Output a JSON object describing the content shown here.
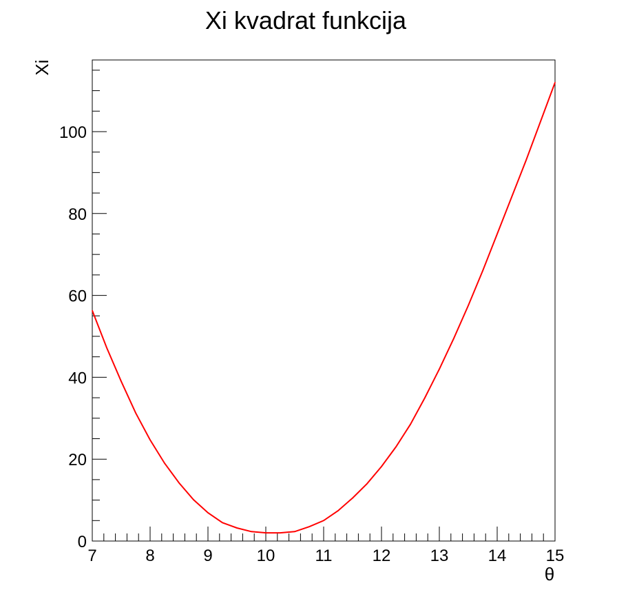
{
  "chart_data": {
    "type": "line",
    "title": "Xi kvadrat funkcija",
    "xlabel": "θ",
    "ylabel": "Xi",
    "xlim": [
      7,
      15
    ],
    "ylim": [
      0,
      117.5
    ],
    "grid": false,
    "x_ticks": [
      7,
      8,
      9,
      10,
      11,
      12,
      13,
      14,
      15
    ],
    "y_ticks": [
      0,
      20,
      40,
      60,
      80,
      100
    ],
    "line_color": "#ff0000",
    "series": [
      {
        "x": [
          7.0,
          7.25,
          7.5,
          7.75,
          8.0,
          8.25,
          8.5,
          8.75,
          9.0,
          9.25,
          9.5,
          9.75,
          10.0,
          10.25,
          10.5,
          10.75,
          11.0,
          11.25,
          11.5,
          11.75,
          12.0,
          12.25,
          12.5,
          12.75,
          13.0,
          13.25,
          13.5,
          13.75,
          14.0,
          14.25,
          14.5,
          14.75,
          15.0
        ],
        "y": [
          56.3,
          47.2,
          39.0,
          31.3,
          24.7,
          19.0,
          14.2,
          10.1,
          6.9,
          4.5,
          3.2,
          2.3,
          2.0,
          2.0,
          2.3,
          3.5,
          5.0,
          7.4,
          10.5,
          14.0,
          18.2,
          23.0,
          28.5,
          35.0,
          42.0,
          49.5,
          57.5,
          66.0,
          75.0,
          84.0,
          93.0,
          102.5,
          112.0
        ]
      }
    ]
  }
}
